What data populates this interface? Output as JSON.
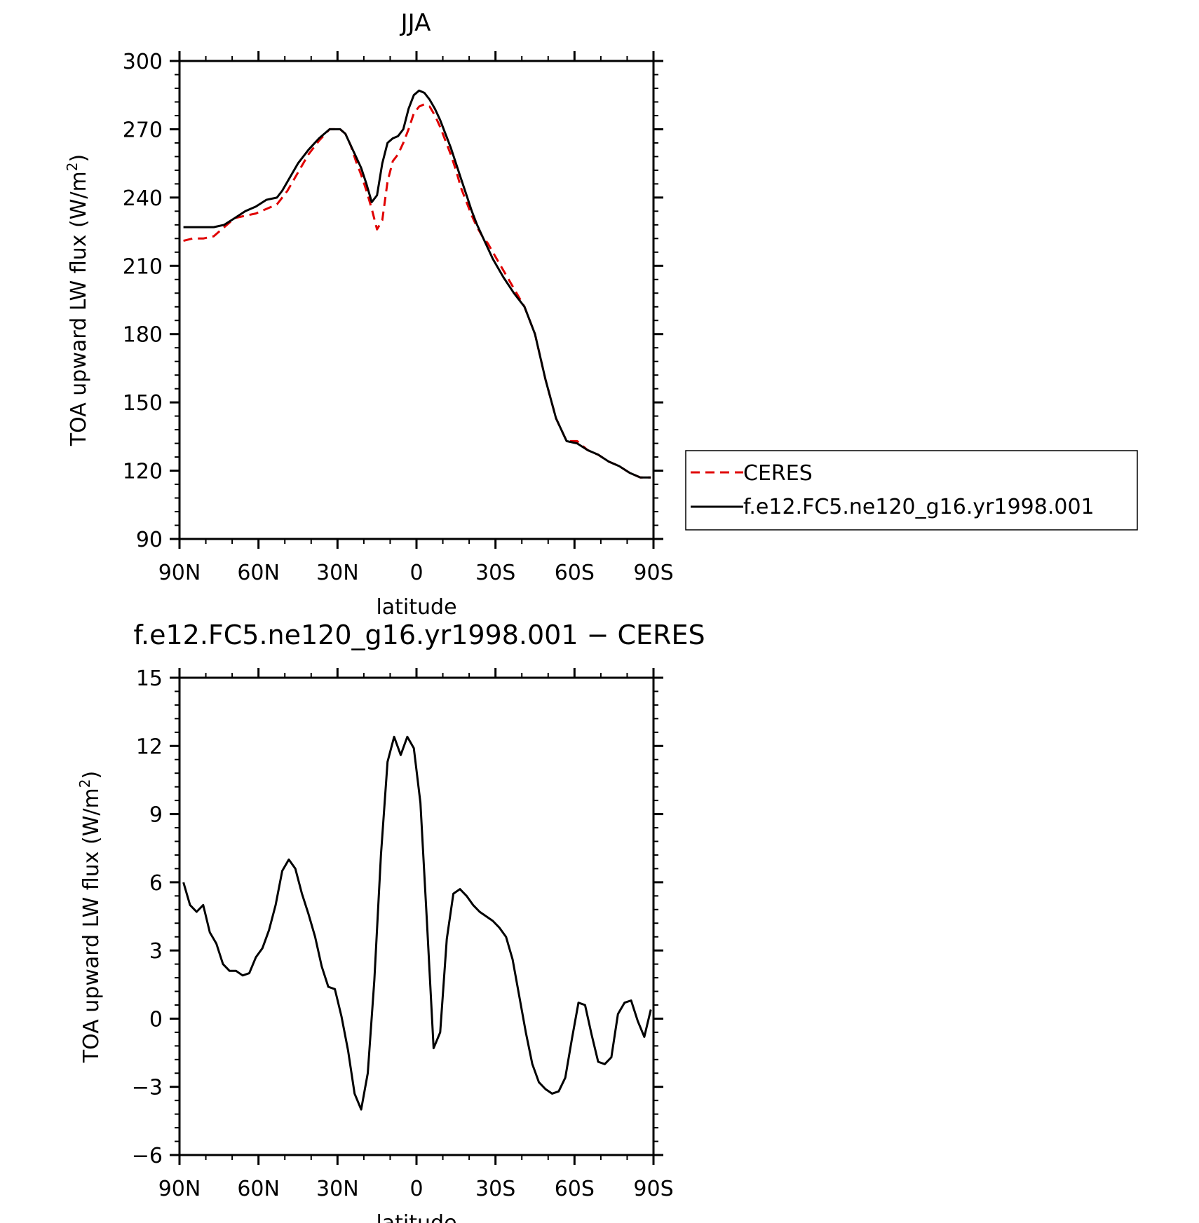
{
  "chart_data": [
    {
      "type": "line",
      "title": "JJA",
      "xlabel": "latitude",
      "ylabel": "TOA upward LW flux (W/m",
      "ylabel_sup": "2",
      "ylabel_close": ")",
      "xlim": [
        -90,
        90
      ],
      "ylim": [
        90,
        300
      ],
      "xticks": [
        {
          "value": -90,
          "label": "90N"
        },
        {
          "value": -60,
          "label": "60N"
        },
        {
          "value": -30,
          "label": "30N"
        },
        {
          "value": 0,
          "label": "0"
        },
        {
          "value": 30,
          "label": "30S"
        },
        {
          "value": 60,
          "label": "60S"
        },
        {
          "value": 90,
          "label": "90S"
        }
      ],
      "yticks": [
        {
          "value": 90,
          "label": "90"
        },
        {
          "value": 120,
          "label": "120"
        },
        {
          "value": 150,
          "label": "150"
        },
        {
          "value": 180,
          "label": "180"
        },
        {
          "value": 210,
          "label": "210"
        },
        {
          "value": 240,
          "label": "240"
        },
        {
          "value": 270,
          "label": "270"
        },
        {
          "value": 300,
          "label": "300"
        }
      ],
      "grid": false,
      "legend_position": "right",
      "series": [
        {
          "name": "CERES",
          "color": "#e00000",
          "dash": true,
          "x": [
            -88.5,
            -85,
            -81,
            -77,
            -73,
            -69,
            -65,
            -61,
            -57,
            -53,
            -51,
            -49,
            -45,
            -41,
            -37,
            -33,
            -29,
            -27,
            -25,
            -23,
            -21,
            -19,
            -17,
            -15,
            -13,
            -11,
            -9,
            -7,
            -5,
            -3,
            -1,
            1,
            3,
            5,
            7,
            9,
            11,
            13,
            15,
            17,
            19,
            21,
            23,
            25,
            27,
            29,
            33,
            37,
            41,
            45,
            49,
            53,
            57,
            61,
            65,
            69,
            73,
            77,
            81,
            85,
            89
          ],
          "y": [
            221,
            222,
            222,
            223,
            227,
            231,
            232,
            233,
            235,
            237,
            240,
            243,
            251,
            259,
            265,
            270,
            270,
            268,
            263,
            256,
            250,
            243,
            235,
            226,
            230,
            247,
            256,
            259,
            264,
            270,
            277,
            280,
            281,
            280,
            276,
            271,
            265,
            259,
            252,
            244,
            238,
            232,
            227,
            223,
            220,
            216,
            208,
            200,
            192,
            180,
            160,
            143,
            133,
            133,
            129,
            127,
            124,
            122,
            119,
            117,
            117
          ]
        },
        {
          "name": "f.e12.FC5.ne120_g16.yr1998.001",
          "color": "#000000",
          "dash": false,
          "x": [
            -88.5,
            -85,
            -81,
            -77,
            -73,
            -69,
            -65,
            -61,
            -57,
            -53,
            -51,
            -49,
            -45,
            -41,
            -37,
            -33,
            -29,
            -27,
            -25,
            -23,
            -21,
            -19,
            -17,
            -15,
            -13,
            -11,
            -9,
            -7,
            -5,
            -3,
            -1,
            1,
            3,
            5,
            7,
            9,
            11,
            13,
            15,
            17,
            19,
            21,
            23,
            25,
            27,
            29,
            33,
            37,
            41,
            45,
            49,
            53,
            57,
            61,
            65,
            69,
            73,
            77,
            81,
            85,
            89
          ],
          "y": [
            227,
            227,
            227,
            227,
            228,
            231,
            234,
            236,
            239,
            240,
            243,
            247,
            255,
            261,
            266,
            270,
            270,
            268,
            263,
            258,
            253,
            246,
            238,
            241,
            255,
            264,
            266,
            267,
            270,
            279,
            285,
            287,
            286,
            283,
            279,
            274,
            268,
            262,
            255,
            248,
            241,
            234,
            228,
            223,
            218,
            213,
            205,
            198,
            192,
            180,
            160,
            143,
            133,
            132,
            129,
            127,
            124,
            122,
            119,
            117,
            117
          ]
        }
      ]
    },
    {
      "type": "line",
      "title": "f.e12.FC5.ne120_g16.yr1998.001 − CERES",
      "xlabel": "latitude",
      "ylabel": "TOA upward LW flux (W/m",
      "ylabel_sup": "2",
      "ylabel_close": ")",
      "xlim": [
        -90,
        90
      ],
      "ylim": [
        -6,
        15
      ],
      "xticks": [
        {
          "value": -90,
          "label": "90N"
        },
        {
          "value": -60,
          "label": "60N"
        },
        {
          "value": -30,
          "label": "30N"
        },
        {
          "value": 0,
          "label": "0"
        },
        {
          "value": 30,
          "label": "30S"
        },
        {
          "value": 60,
          "label": "60S"
        },
        {
          "value": 90,
          "label": "90S"
        }
      ],
      "yticks": [
        {
          "value": -6,
          "label": "−6"
        },
        {
          "value": -3,
          "label": "−3"
        },
        {
          "value": 0,
          "label": "0"
        },
        {
          "value": 3,
          "label": "3"
        },
        {
          "value": 6,
          "label": "6"
        },
        {
          "value": 9,
          "label": "9"
        },
        {
          "value": 12,
          "label": "12"
        },
        {
          "value": 15,
          "label": "15"
        }
      ],
      "grid": false,
      "series": [
        {
          "color": "#000000",
          "dash": false,
          "x": [
            -88.5,
            -86,
            -83.5,
            -81,
            -78.5,
            -76,
            -73.5,
            -71,
            -68.5,
            -66,
            -63.5,
            -61,
            -58.5,
            -56,
            -53.5,
            -51,
            -48.5,
            -46,
            -43.5,
            -41,
            -38.5,
            -36,
            -33.5,
            -31,
            -28.5,
            -26,
            -23.5,
            -21,
            -18.5,
            -16,
            -13.5,
            -11,
            -8.5,
            -6,
            -3.5,
            -1,
            1.5,
            4,
            6.5,
            9,
            11.5,
            14,
            16.5,
            19,
            21.5,
            24,
            26.5,
            29,
            31.5,
            34,
            36.5,
            39,
            41.5,
            44,
            46.5,
            49,
            51.5,
            54,
            56.5,
            59,
            61.5,
            64,
            66.5,
            69,
            71.5,
            74,
            76.5,
            79,
            81.5,
            84,
            86.5,
            89
          ],
          "y": [
            6.0,
            5.0,
            4.7,
            5.0,
            3.8,
            3.3,
            2.4,
            2.1,
            2.1,
            1.9,
            2.0,
            2.7,
            3.1,
            3.9,
            5.0,
            6.5,
            7.0,
            6.6,
            5.5,
            4.6,
            3.6,
            2.3,
            1.4,
            1.3,
            0.1,
            -1.4,
            -3.3,
            -4.0,
            -2.4,
            1.7,
            7.2,
            11.3,
            12.4,
            11.6,
            12.4,
            11.9,
            9.5,
            4.2,
            -1.3,
            -0.6,
            3.5,
            5.5,
            5.7,
            5.4,
            5.0,
            4.7,
            4.5,
            4.3,
            4.0,
            3.6,
            2.6,
            1.0,
            -0.6,
            -2.0,
            -2.8,
            -3.1,
            -3.3,
            -3.2,
            -2.6,
            -0.9,
            0.7,
            0.6,
            -0.7,
            -1.9,
            -2.0,
            -1.7,
            0.2,
            0.7,
            0.8,
            -0.1,
            -0.8,
            0.4
          ]
        }
      ]
    }
  ]
}
